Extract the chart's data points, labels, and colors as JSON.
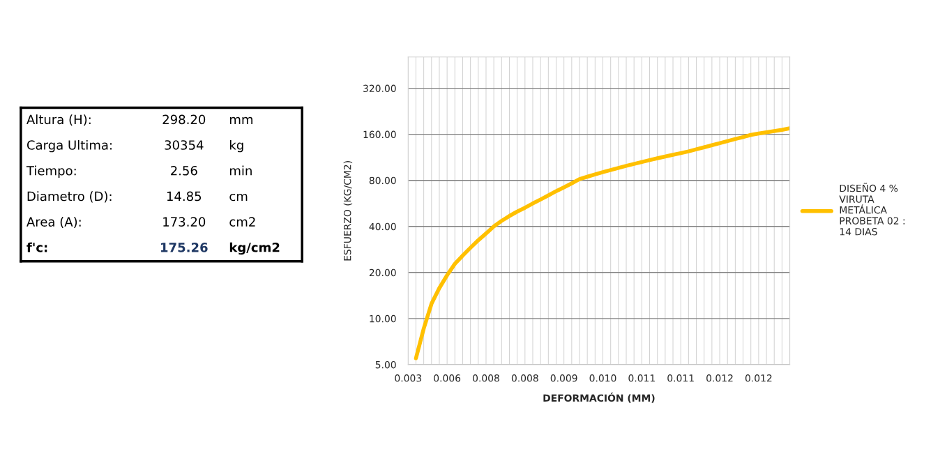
{
  "chart_data": [
    {
      "type": "other",
      "annotations": [
        "Altura (H):",
        "298.20",
        "mm",
        "Carga Ultima:",
        "30354",
        "kg",
        "Tiempo:",
        "2.56",
        "min",
        "Diametro (D):",
        "14.85",
        "cm",
        "Area (A):",
        "173.20",
        "cm2",
        "f'c:",
        "175.26",
        "kg/cm2"
      ]
    },
    {
      "type": "line",
      "xlabel": "DEFORMACIÓN (MM)",
      "ylabel": "ESFUERZO (KG/CM2)",
      "log": "y",
      "grid": true,
      "legend": "right",
      "marker": "none",
      "line_style": "solid",
      "categories": [
        "0.003",
        null,
        null,
        null,
        null,
        "0.006",
        null,
        null,
        null,
        null,
        "0.008",
        null,
        null,
        null,
        null,
        "0.008",
        null,
        null,
        null,
        null,
        "0.009",
        null,
        null,
        null,
        null,
        "0.010",
        null,
        null,
        null,
        null,
        "0.011",
        null,
        null,
        null,
        null,
        "0.011",
        null,
        null,
        null,
        null,
        "0.012",
        null,
        null,
        null,
        null,
        "0.012",
        null,
        null,
        null,
        null
      ],
      "ylim": [
        5,
        512
      ],
      "yticks": [
        {
          "value": 5,
          "label": "5.00"
        },
        {
          "value": 10,
          "label": "10.00"
        },
        {
          "value": 20,
          "label": "20.00"
        },
        {
          "value": 40,
          "label": "40.00"
        },
        {
          "value": 80,
          "label": "80.00"
        },
        {
          "value": 160,
          "label": "160.00"
        },
        {
          "value": 320,
          "label": "320.00"
        }
      ],
      "series": [
        {
          "name": "DISEÑO 4 %\nVIRUTA\nMETÁLICA\nPROBETA 02 :\n14 DIAS",
          "color": "#ffc000",
          "values": [
            null,
            5.5,
            8.6,
            12.5,
            15.8,
            19.2,
            22.8,
            25.8,
            29,
            32.5,
            36,
            40,
            43.5,
            46.8,
            50,
            53,
            56.5,
            60,
            63.8,
            68,
            72,
            76.5,
            81.5,
            84.5,
            87.5,
            90.5,
            93.5,
            96.5,
            99.5,
            102.5,
            105.5,
            108.5,
            111.5,
            114.5,
            117.5,
            120.5,
            123.8,
            127.7,
            131.6,
            135.8,
            140,
            144.5,
            149,
            153.5,
            158.5,
            162,
            165,
            168,
            171,
            175
          ]
        }
      ]
    }
  ]
}
